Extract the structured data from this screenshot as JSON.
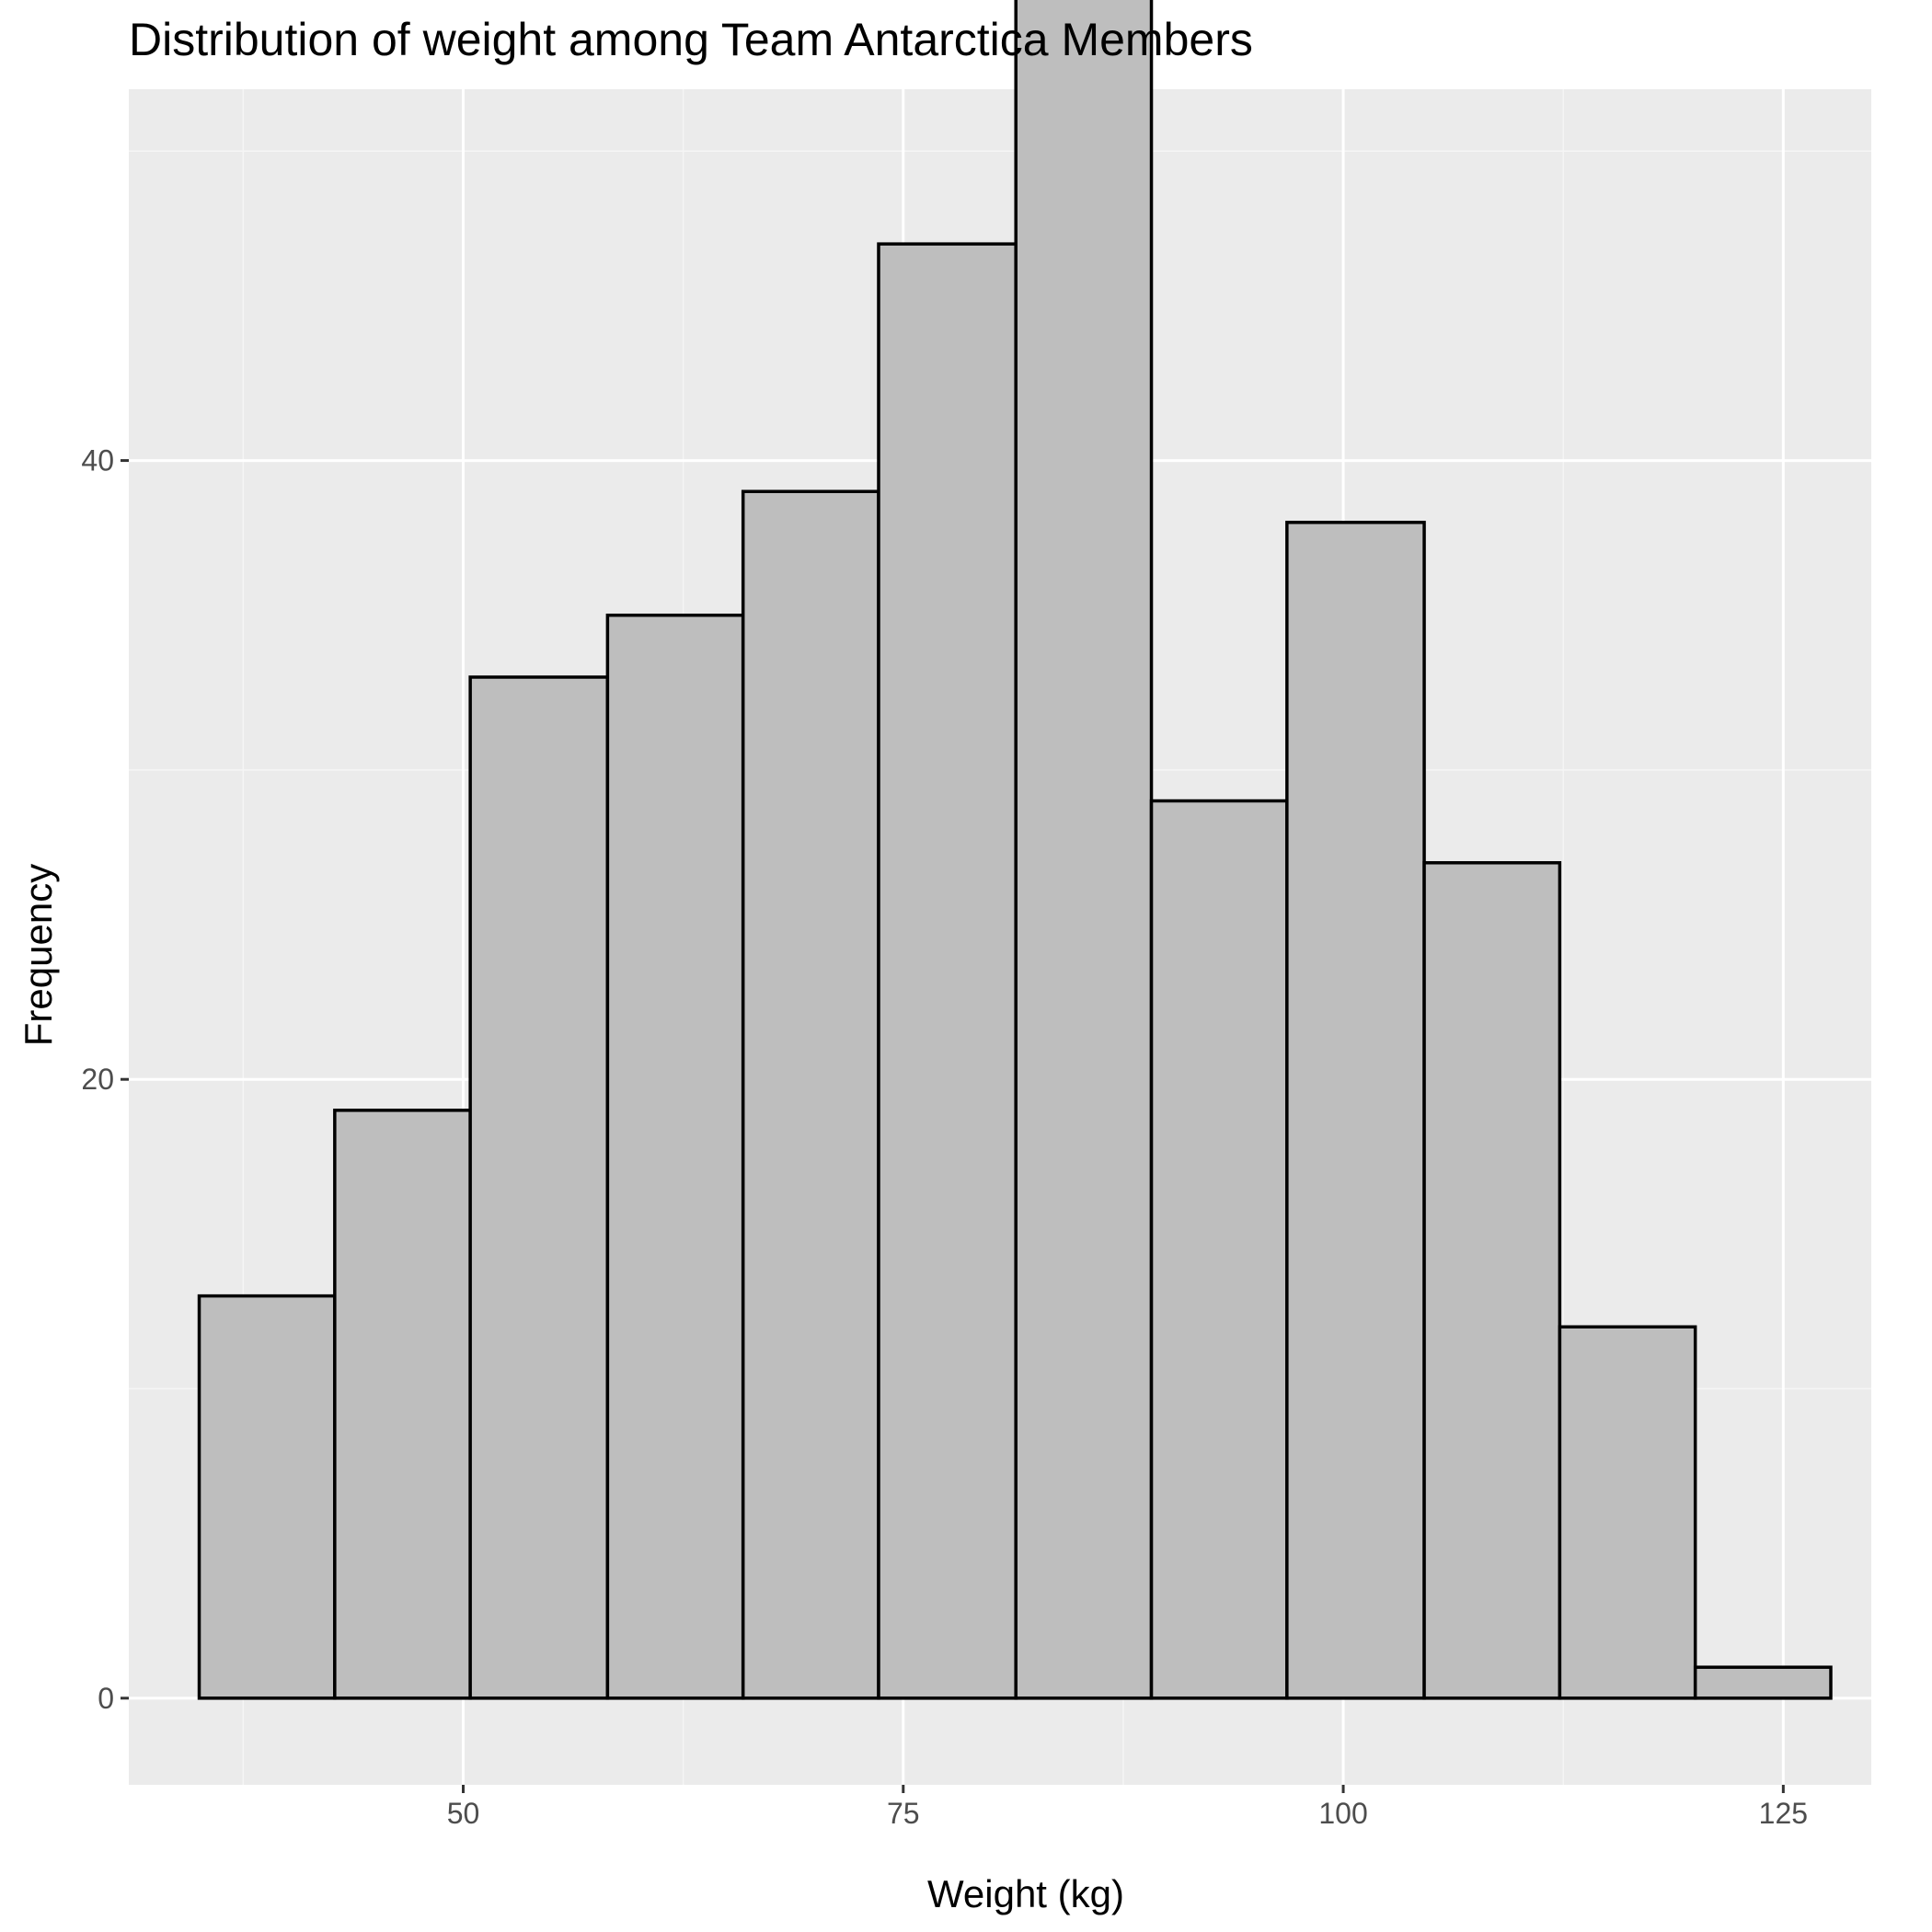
{
  "chart_data": {
    "type": "bar",
    "title": "Distribution of weight among Team Antarctica Members",
    "xlabel": "Weight (kg)",
    "ylabel": "Frequency",
    "xlim": [
      31,
      130
    ],
    "ylim": [
      -2.8,
      52
    ],
    "x_ticks": [
      50,
      75,
      100,
      125
    ],
    "x_minor_ticks": [
      37.5,
      62.5,
      87.5,
      112.5
    ],
    "y_ticks": [
      0,
      20,
      40
    ],
    "y_minor_ticks": [
      10,
      30,
      50
    ],
    "bins": [
      {
        "x_start": 35.0,
        "x_end": 42.7,
        "count": 13
      },
      {
        "x_start": 42.7,
        "x_end": 50.4,
        "count": 19
      },
      {
        "x_start": 50.4,
        "x_end": 58.2,
        "count": 33
      },
      {
        "x_start": 58.2,
        "x_end": 65.9,
        "count": 35
      },
      {
        "x_start": 65.9,
        "x_end": 73.6,
        "count": 39
      },
      {
        "x_start": 73.6,
        "x_end": 81.4,
        "count": 47
      },
      {
        "x_start": 81.4,
        "x_end": 89.1,
        "count": 56
      },
      {
        "x_start": 89.1,
        "x_end": 96.8,
        "count": 29
      },
      {
        "x_start": 96.8,
        "x_end": 104.6,
        "count": 38
      },
      {
        "x_start": 104.6,
        "x_end": 112.3,
        "count": 27
      },
      {
        "x_start": 112.3,
        "x_end": 120.0,
        "count": 12
      },
      {
        "x_start": 120.0,
        "x_end": 127.7,
        "count": 1
      }
    ],
    "grid": true,
    "legend": "none",
    "colors": {
      "panel_background": "#ebebeb",
      "grid_major": "#ffffff",
      "grid_minor": "#f5f5f5",
      "bar_fill": "#bebebe",
      "bar_outline": "#000000",
      "tick_label": "#4d4d4d",
      "tick_mark": "#333333"
    }
  }
}
